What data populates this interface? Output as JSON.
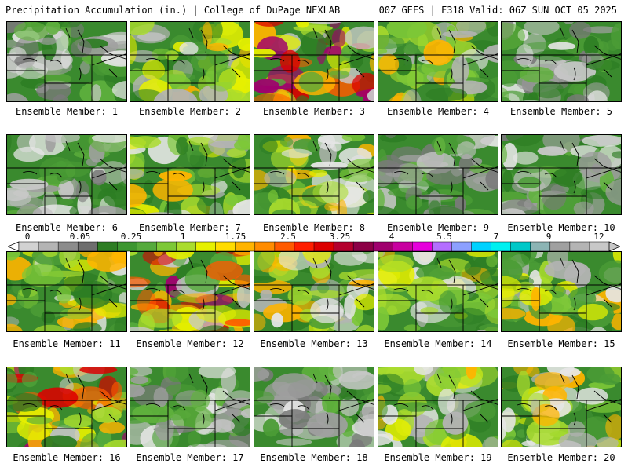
{
  "header": {
    "title": "Precipitation Accumulation (in.) | College of DuPage NEXLAB",
    "valid": "00Z GEFS | F318 Valid: 06Z SUN OCT 05 2025"
  },
  "members": [
    {
      "label": "Ensemble Member: 1",
      "peak": "low"
    },
    {
      "label": "Ensemble Member: 2",
      "peak": "moderate"
    },
    {
      "label": "Ensemble Member: 3",
      "peak": "high"
    },
    {
      "label": "Ensemble Member: 4",
      "peak": "moderate"
    },
    {
      "label": "Ensemble Member: 5",
      "peak": "low"
    },
    {
      "label": "Ensemble Member: 6",
      "peak": "low"
    },
    {
      "label": "Ensemble Member: 7",
      "peak": "moderate"
    },
    {
      "label": "Ensemble Member: 8",
      "peak": "moderate"
    },
    {
      "label": "Ensemble Member: 9",
      "peak": "low"
    },
    {
      "label": "Ensemble Member: 10",
      "peak": "low"
    },
    {
      "label": "Ensemble Member: 11",
      "peak": "moderate"
    },
    {
      "label": "Ensemble Member: 12",
      "peak": "high"
    },
    {
      "label": "Ensemble Member: 13",
      "peak": "moderate"
    },
    {
      "label": "Ensemble Member: 14",
      "peak": "moderate"
    },
    {
      "label": "Ensemble Member: 15",
      "peak": "moderate"
    },
    {
      "label": "Ensemble Member: 16",
      "peak": "high"
    },
    {
      "label": "Ensemble Member: 17",
      "peak": "low"
    },
    {
      "label": "Ensemble Member: 18",
      "peak": "low"
    },
    {
      "label": "Ensemble Member: 19",
      "peak": "moderate"
    },
    {
      "label": "Ensemble Member: 20",
      "peak": "moderate"
    }
  ],
  "colorbar": {
    "tick_labels": [
      "0",
      "0.05",
      "0.25",
      "1",
      "1.75",
      "2.5",
      "3.25",
      "4",
      "5.5",
      "7",
      "9",
      "12"
    ],
    "colors": [
      "#d2d2d2",
      "#b4b4b4",
      "#8c8c8c",
      "#6e6e6e",
      "#2d7d23",
      "#3c9630",
      "#55aa3c",
      "#7dc837",
      "#aadc2d",
      "#e6f000",
      "#ffdc00",
      "#ffb400",
      "#ff8c00",
      "#ff5a00",
      "#ff1e00",
      "#dc0000",
      "#b4002d",
      "#8c0046",
      "#a0006e",
      "#c800a0",
      "#e600dc",
      "#b46eff",
      "#8ca0ff",
      "#00d2ff",
      "#00f0f0",
      "#00c8c8",
      "#8cb4b4",
      "#a0a0a0",
      "#b4b4b4",
      "#c8c8c8"
    ]
  }
}
